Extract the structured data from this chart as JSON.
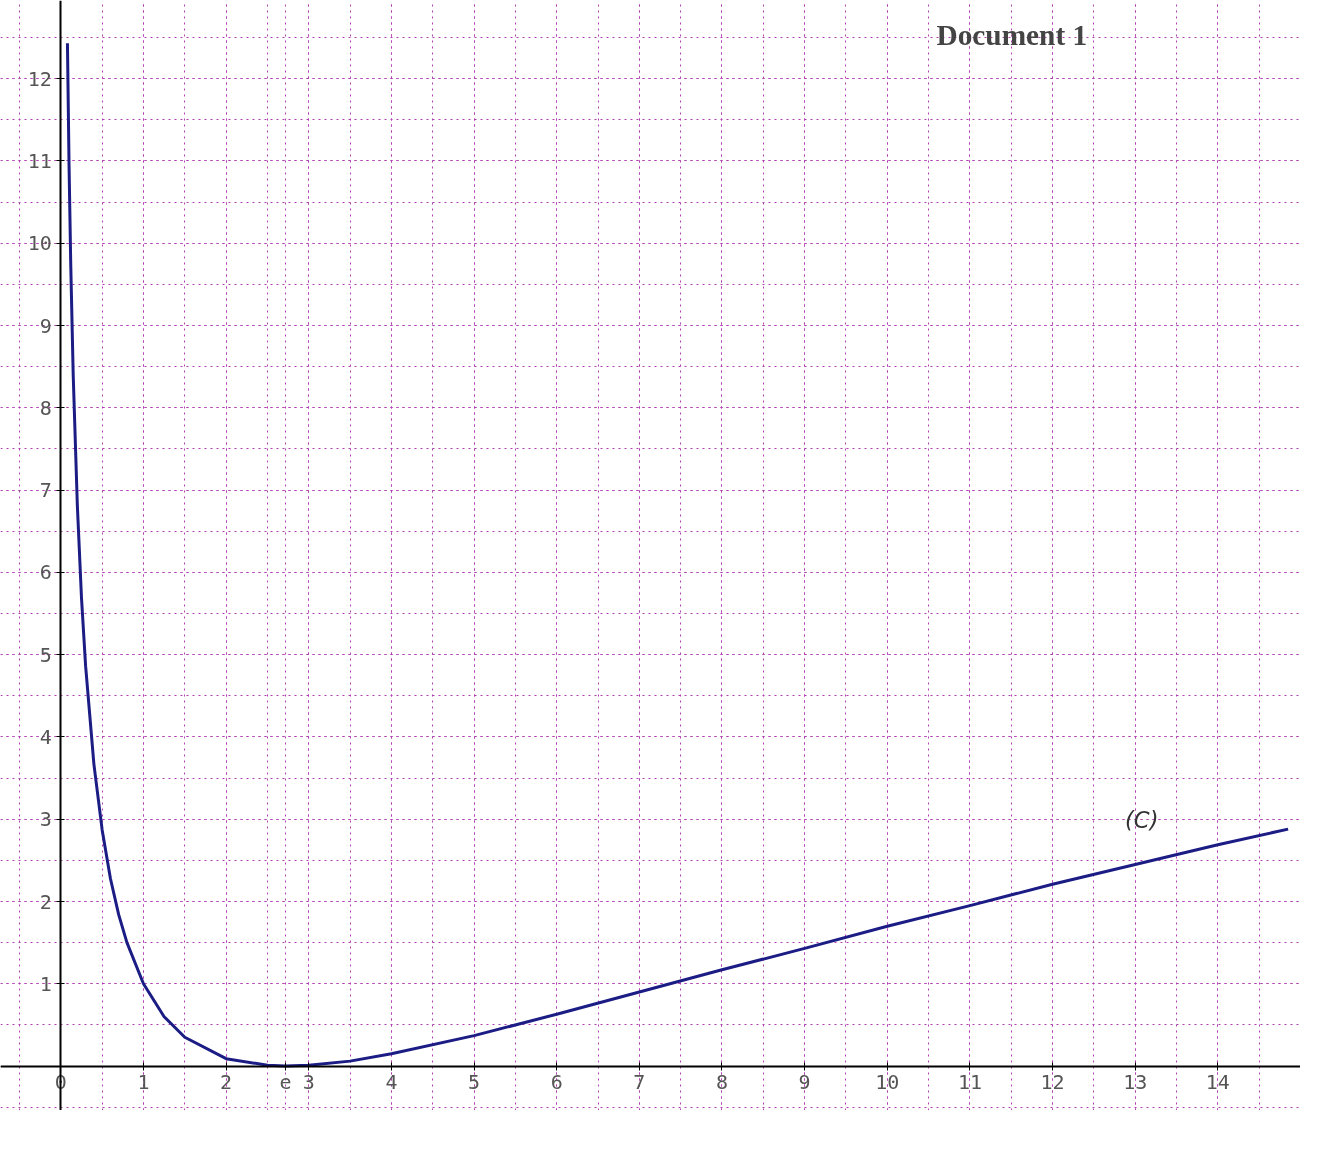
{
  "chart_data": {
    "type": "line",
    "title": "Document 1",
    "x": [
      0.08,
      0.1,
      0.12,
      0.15,
      0.2,
      0.25,
      0.3,
      0.4,
      0.5,
      0.6,
      0.7,
      0.8,
      1,
      1.25,
      1.5,
      2,
      2.5,
      2.718,
      3,
      3.5,
      4,
      5,
      6,
      7,
      8,
      9,
      10,
      11,
      12,
      13,
      14,
      14.85
    ],
    "series": [
      {
        "color": "#1c1c85",
        "values": [
          12.43,
          10.91,
          9.74,
          8.39,
          6.81,
          5.69,
          4.86,
          3.67,
          2.87,
          2.28,
          1.84,
          1.5,
          1,
          0.6,
          0.35,
          0.09,
          0.01,
          0,
          0.01,
          0.06,
          0.15,
          0.37,
          0.63,
          0.9,
          1.17,
          1.43,
          1.7,
          1.95,
          2.21,
          2.45,
          2.69,
          2.88
        ]
      }
    ],
    "xlim": [
      -0.73,
      15.0
    ],
    "ylim": [
      -0.54,
      12.95
    ],
    "xticks": [
      0,
      1,
      2,
      {
        "value": 2.718,
        "label": "e"
      },
      3,
      4,
      5,
      6,
      7,
      8,
      9,
      10,
      11,
      12,
      13,
      14
    ],
    "yticks": [
      1,
      2,
      3,
      4,
      5,
      6,
      7,
      8,
      9,
      10,
      11,
      12
    ],
    "grid": true,
    "marker": "none",
    "line_style": "solid",
    "annotations": [
      "(C)"
    ]
  }
}
